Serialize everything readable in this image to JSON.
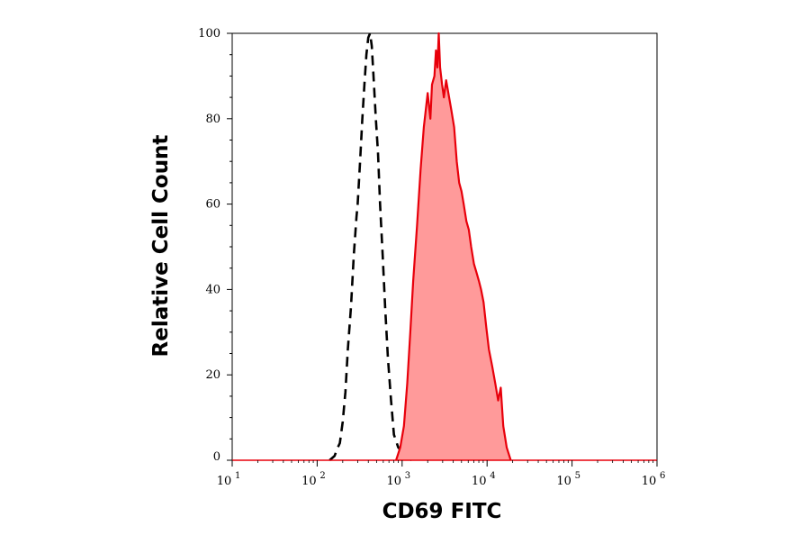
{
  "chart_data": {
    "type": "area",
    "title": "",
    "xlabel": "CD69 FITC",
    "ylabel": "Relative Cell Count",
    "x_scale": "log",
    "xlim": [
      10,
      1000000
    ],
    "ylim": [
      0,
      100
    ],
    "x_ticks": [
      {
        "value": 10,
        "base": "10",
        "exp": "1"
      },
      {
        "value": 100,
        "base": "10",
        "exp": "2"
      },
      {
        "value": 1000,
        "base": "10",
        "exp": "3"
      },
      {
        "value": 10000,
        "base": "10",
        "exp": "4"
      },
      {
        "value": 100000,
        "base": "10",
        "exp": "5"
      },
      {
        "value": 1000000,
        "base": "10",
        "exp": "6"
      }
    ],
    "y_ticks": [
      "0",
      "20",
      "40",
      "60",
      "80",
      "100"
    ],
    "grid": false,
    "legend": "none",
    "series": [
      {
        "style": "dashed",
        "color": "#000000",
        "fill": "none",
        "points": [
          [
            140,
            0
          ],
          [
            160,
            1
          ],
          [
            175,
            3
          ],
          [
            185,
            4
          ],
          [
            200,
            9
          ],
          [
            215,
            16
          ],
          [
            230,
            26
          ],
          [
            250,
            36
          ],
          [
            270,
            48
          ],
          [
            290,
            57
          ],
          [
            300,
            60
          ],
          [
            320,
            70
          ],
          [
            340,
            80
          ],
          [
            360,
            88
          ],
          [
            380,
            95
          ],
          [
            400,
            99
          ],
          [
            420,
            100
          ],
          [
            440,
            97
          ],
          [
            460,
            90
          ],
          [
            490,
            80
          ],
          [
            520,
            72
          ],
          [
            550,
            60
          ],
          [
            590,
            48
          ],
          [
            630,
            36
          ],
          [
            680,
            24
          ],
          [
            740,
            14
          ],
          [
            800,
            6
          ],
          [
            900,
            3
          ],
          [
            1000,
            2
          ],
          [
            1150,
            1
          ],
          [
            1300,
            0
          ]
        ]
      },
      {
        "style": "solid",
        "color": "#e8000b",
        "fill": "#ff9a9a",
        "points": [
          [
            850,
            0
          ],
          [
            950,
            3
          ],
          [
            1050,
            8
          ],
          [
            1150,
            18
          ],
          [
            1250,
            30
          ],
          [
            1350,
            42
          ],
          [
            1500,
            55
          ],
          [
            1650,
            68
          ],
          [
            1800,
            78
          ],
          [
            2000,
            86
          ],
          [
            2150,
            80
          ],
          [
            2250,
            88
          ],
          [
            2400,
            90
          ],
          [
            2500,
            96
          ],
          [
            2600,
            92
          ],
          [
            2700,
            100
          ],
          [
            2800,
            92
          ],
          [
            2950,
            88
          ],
          [
            3100,
            85
          ],
          [
            3300,
            89
          ],
          [
            3500,
            86
          ],
          [
            3800,
            82
          ],
          [
            4100,
            78
          ],
          [
            4400,
            70
          ],
          [
            4700,
            65
          ],
          [
            5000,
            63
          ],
          [
            5300,
            60
          ],
          [
            5700,
            56
          ],
          [
            6100,
            54
          ],
          [
            6500,
            50
          ],
          [
            7000,
            46
          ],
          [
            7500,
            44
          ],
          [
            8000,
            42
          ],
          [
            8500,
            40
          ],
          [
            9100,
            37
          ],
          [
            9800,
            31
          ],
          [
            10500,
            26
          ],
          [
            11500,
            22
          ],
          [
            12500,
            18
          ],
          [
            13500,
            14
          ],
          [
            14500,
            17
          ],
          [
            15500,
            8
          ],
          [
            17000,
            3
          ],
          [
            19000,
            0
          ]
        ]
      }
    ]
  }
}
